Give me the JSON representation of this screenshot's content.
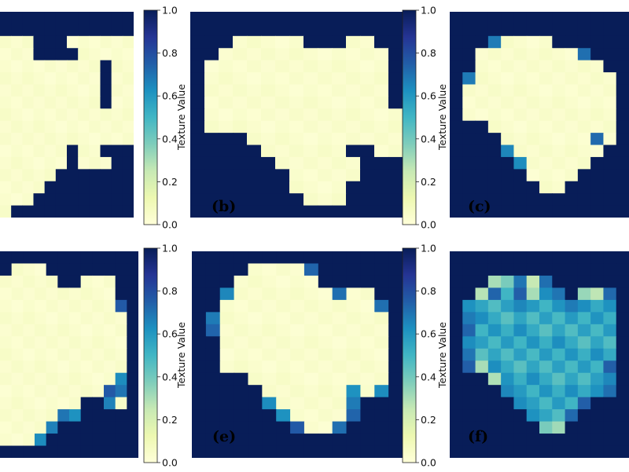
{
  "chart_data": {
    "type": "heatmap",
    "colormap": "YlGnBu",
    "colormap_stops": [
      "#ffffd9",
      "#edf8b1",
      "#c7e9b4",
      "#7fcdbb",
      "#41b6c4",
      "#1d91c0",
      "#225ea8",
      "#253494",
      "#081d58"
    ],
    "colorbar": {
      "label": "Texture Value",
      "range": [
        0,
        1
      ],
      "ticks": [
        "0.0",
        "0.2",
        "0.4",
        "0.6",
        "0.8",
        "1.0"
      ]
    },
    "panels": [
      {
        "id": "a",
        "label": "",
        "rows": [
          "FFFFFFFFFFFF",
          "FFFFFFFFFFFF",
          "CCCFFFCCCCCC",
          "CCCFFFFCCCCC",
          "CCCCCCCCCFCC",
          "CCCCCCCCCFCC",
          "CCCCCCCCCFCC",
          "CCCCCCCCCFCC",
          "CCCCCCCCCCCC",
          "CCCCCCCCCCCC",
          "CCCCCCCCCCCC",
          "CCCCCCFCCFFF",
          "CCCCCCFCCCFF",
          "CCCCCFFFFFFF",
          "CCCCFFFFFFFF",
          "CCCFFFFFFFFF",
          "CFFFFFFFFFFF"
        ]
      },
      {
        "id": "b",
        "label": "(b)",
        "rows": [
          "FFFFFFFFFFFFFFF",
          "FFFFFFFFFFFFFFF",
          "FFFCCCCCFFFCCFF",
          "FFCCCCCCCCCCCCF",
          "FCCCCCCCCCCCCCF",
          "FCCCCCCCCCCCCCF",
          "FCCCCCCCCCCCCCF",
          "FCCCCCCCCCCCCCF",
          "FCCCCCCCCCCCCCC",
          "FCCCCCCCCCCCCCC",
          "FFFFCCCCCCCCCCC",
          "FFFFFCCCCCCFFCC",
          "FFFFFFCCCCCCFFF",
          "FFFFFFFCCCCCFFF",
          "FFFFFFFCCCCFFFF",
          "FFFFFFFFCCCFFFF",
          "FFFFFFFFFFFFFFF"
        ]
      },
      {
        "id": "c",
        "label": "(c)",
        "rows": [
          "FFFFFFFFFFFFFF",
          "FFFFFFFFFFFFFF",
          "FFFHCCCCFFFFFF",
          "FFCCCCCCCCHFFF",
          "FFCCCCCCCCCCFF",
          "FHCCCCCCCCCCCF",
          "FCCCCCCCCCCCCF",
          "FCCCCCCCCCCCCF",
          "FCCCCCCCCCCCCF",
          "FFFCCCCCCCCCCF",
          "FFFFCCCCCCCHCF",
          "FFFFHCCCCCCCFF",
          "FFFFFHCCCCCFFF",
          "FFFFFFCCCCFFFF",
          "FFFFFFFCCFFFFF",
          "FFFFFFFFFFFFFF",
          "FFFFFFFFFFFFFF"
        ]
      },
      {
        "id": "d",
        "label": "",
        "rows": [
          "FFFFFFFFFFFF",
          "FCCCFFFFFFFF",
          "CCCCCFFCCCFF",
          "CCCCCCCCCCFF",
          "CCCCCCCCCCHF",
          "CCCCCCCCCCCF",
          "CCCCCCCCCCCF",
          "CCCCCCCCCCCF",
          "CCCCCCCCCCCF",
          "CCCCCCCCCCCF",
          "CCCCCCCCCCHF",
          "CCCCCCCCCHHF",
          "CCCCCCCFFHCF",
          "CCCCCHHFFFFF",
          "CCCCHFFFFFFF",
          "CCCHFFFFFFFF",
          "FFFFFFFFFFFF"
        ]
      },
      {
        "id": "e",
        "label": "(e)",
        "rows": [
          "FFFFFFFFFFFFFFF",
          "FFFFCCCCHFFFFFF",
          "FFFCCCCCCFFFFFF",
          "FFHCCCCCCCHCCFF",
          "FFCCCCCCCCCCCHF",
          "FHCCCCCCCCCCCCF",
          "FHCCCCCCCCCCCCF",
          "FFCCCCCCCCCCCCF",
          "FFCCCCCCCCCCCCF",
          "FFCCCCCCCCCCCCF",
          "FFFFCCCCCCCCCCF",
          "FFFFFCCCCCCHCHF",
          "FFFFFHCCCCCHFFF",
          "FFFFFFHCCCCHFFF",
          "FFFFFFFHCCHFFFF",
          "FFFFFFFFFFFFFFF",
          "FFFFFFFFFFFFFFF"
        ]
      },
      {
        "id": "f",
        "label": "(f)",
        "rows": [
          "FFFFFFFFFFFFFF",
          "FFFFFFFFFFFFFF",
          "FFFGGHGHFFFFFF",
          "FFGHMHGMHFGGHF",
          "FHMMMHMMMHMMHF",
          "FHMMMMMMMMMMMF",
          "FHMMMMMMMMMMMF",
          "FHMMMMMMMMMMMF",
          "FHMMMMMMMMMMMF",
          "FHGMMMMMMMMMHF",
          "FFFGMMMMMMMMHF",
          "FFFFHMMMMMMHHF",
          "FFFFFHMMMMHFFF",
          "FFFFFFHMMHFFFF",
          "FFFFFFFGGFFFFF",
          "FFFFFFFFFFFFFF",
          "FFFFFFFFFFFFFF"
        ]
      }
    ]
  }
}
